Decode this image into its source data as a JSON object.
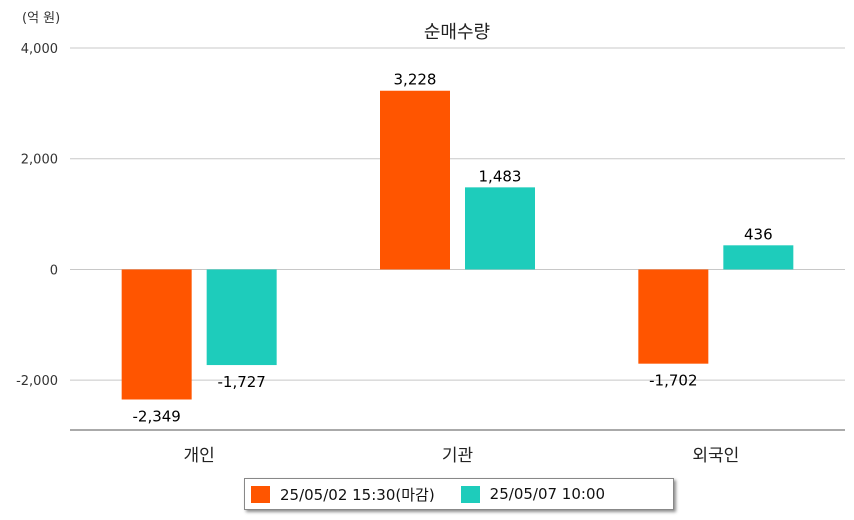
{
  "chart_data": {
    "type": "bar",
    "title": "순매수량",
    "unit_label": "(억 원)",
    "categories": [
      "개인",
      "기관",
      "외국인"
    ],
    "series": [
      {
        "name": "25/05/02 15:30(마감)",
        "color": "#FF5500",
        "values": [
          -2349,
          3228,
          -1702
        ]
      },
      {
        "name": "25/05/07 10:00",
        "color": "#1ECCBB",
        "values": [
          -1727,
          1483,
          436
        ]
      }
    ],
    "value_labels": [
      [
        "-2,349",
        "3,228",
        "-1,702"
      ],
      [
        "-1,727",
        "1,483",
        "436"
      ]
    ],
    "ylim": [
      -2900,
      4000
    ],
    "yticks": [
      4000,
      2000,
      0,
      -2000
    ],
    "ytick_labels": [
      "4,000",
      "2,000",
      "0",
      "-2,000"
    ],
    "grid": true,
    "legend_position": "bottom"
  }
}
